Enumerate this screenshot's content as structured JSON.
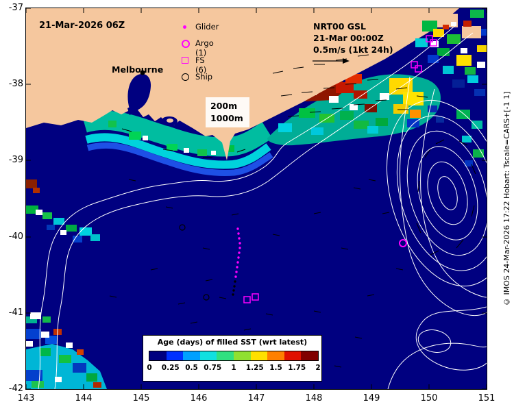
{
  "header": {
    "date_label": "21-Mar-2026 06Z"
  },
  "legend": {
    "items": [
      {
        "label": "Glider",
        "symbol": "glider-dot"
      },
      {
        "label": "Argo (1)",
        "symbol": "argo-circle"
      },
      {
        "label": "FS (6)",
        "symbol": "fs-square"
      },
      {
        "label": "Ship",
        "symbol": "ship-circle"
      }
    ]
  },
  "annotations": {
    "city": "Melbourne",
    "gsl": [
      "NRT00 GSL",
      "21-Mar 00:00Z",
      "0.5m/s (1kt 24h)"
    ],
    "depths": [
      "200m",
      "1000m"
    ]
  },
  "colorbar": {
    "title": "Age (days) of filled SST (wrt latest)",
    "ticks": [
      "0",
      "0.25",
      "0.5",
      "0.75",
      "1",
      "1.25",
      "1.5",
      "1.75",
      "2"
    ],
    "colors": [
      "#000080",
      "#0030ff",
      "#00a0ff",
      "#10e0e0",
      "#30e080",
      "#90e030",
      "#ffe000",
      "#ff8000",
      "#e01000",
      "#800000"
    ]
  },
  "axes": {
    "x_ticks": [
      "143",
      "144",
      "145",
      "146",
      "147",
      "148",
      "149",
      "150",
      "151"
    ],
    "y_ticks": [
      "-37",
      "-38",
      "-39",
      "-40",
      "-41",
      "-42"
    ]
  },
  "credit": "© IMOS 24-Mar-2026 17:22 Hobart: Tscale=CARS+[-1 1]",
  "colors": {
    "land": "#f5c79e",
    "ocean": "#000080",
    "marker_magenta": "#ff00ff",
    "contour": "#ffffff"
  }
}
